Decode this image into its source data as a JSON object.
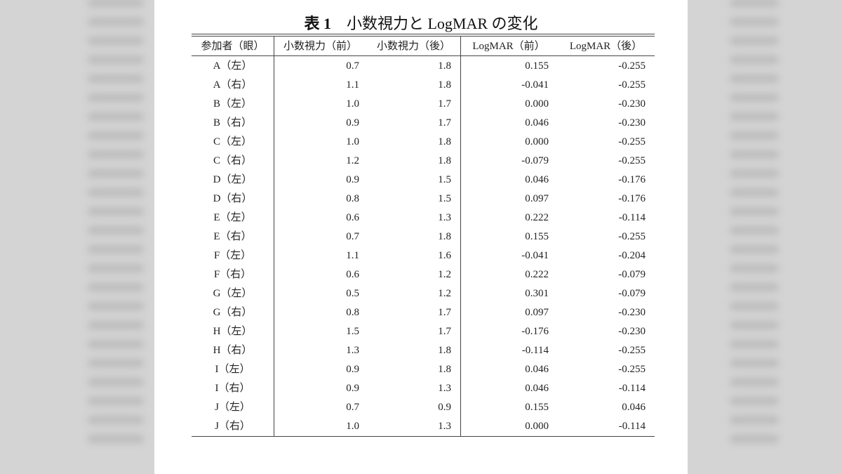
{
  "table": {
    "title_number": "表 1",
    "title_text": "小数視力と LogMAR の変化",
    "headers": [
      "参加者（眼）",
      "小数視力（前）",
      "小数視力（後）",
      "LogMAR（前）",
      "LogMAR（後）"
    ],
    "rows": [
      [
        "A（左）",
        "0.7",
        "1.8",
        "0.155",
        "-0.255"
      ],
      [
        "A（右）",
        "1.1",
        "1.8",
        "-0.041",
        "-0.255"
      ],
      [
        "B（左）",
        "1.0",
        "1.7",
        "0.000",
        "-0.230"
      ],
      [
        "B（右）",
        "0.9",
        "1.7",
        "0.046",
        "-0.230"
      ],
      [
        "C（左）",
        "1.0",
        "1.8",
        "0.000",
        "-0.255"
      ],
      [
        "C（右）",
        "1.2",
        "1.8",
        "-0.079",
        "-0.255"
      ],
      [
        "D（左）",
        "0.9",
        "1.5",
        "0.046",
        "-0.176"
      ],
      [
        "D（右）",
        "0.8",
        "1.5",
        "0.097",
        "-0.176"
      ],
      [
        "E（左）",
        "0.6",
        "1.3",
        "0.222",
        "-0.114"
      ],
      [
        "E（右）",
        "0.7",
        "1.8",
        "0.155",
        "-0.255"
      ],
      [
        "F（左）",
        "1.1",
        "1.6",
        "-0.041",
        "-0.204"
      ],
      [
        "F（右）",
        "0.6",
        "1.2",
        "0.222",
        "-0.079"
      ],
      [
        "G（左）",
        "0.5",
        "1.2",
        "0.301",
        "-0.079"
      ],
      [
        "G（右）",
        "0.8",
        "1.7",
        "0.097",
        "-0.230"
      ],
      [
        "H（左）",
        "1.5",
        "1.7",
        "-0.176",
        "-0.230"
      ],
      [
        "H（右）",
        "1.3",
        "1.8",
        "-0.114",
        "-0.255"
      ],
      [
        "I（左）",
        "0.9",
        "1.8",
        "0.046",
        "-0.255"
      ],
      [
        "I（右）",
        "0.9",
        "1.3",
        "0.046",
        "-0.114"
      ],
      [
        "J（左）",
        "0.7",
        "0.9",
        "0.155",
        "0.046"
      ],
      [
        "J（右）",
        "1.0",
        "1.3",
        "0.000",
        "-0.114"
      ]
    ]
  }
}
